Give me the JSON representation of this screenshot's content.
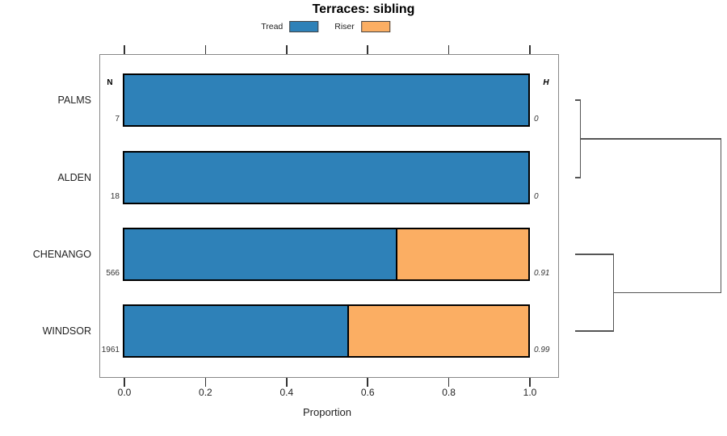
{
  "title": "Terraces: sibling",
  "legend": [
    {
      "label": "Tread",
      "color": "#2E81B8"
    },
    {
      "label": "Riser",
      "color": "#FBAE63"
    }
  ],
  "columns": {
    "n_header": "N",
    "h_header": "H"
  },
  "axis": {
    "label": "Proportion",
    "tick_labels": [
      "0.0",
      "0.2",
      "0.4",
      "0.6",
      "0.8",
      "1.0"
    ]
  },
  "chart_data": {
    "type": "bar",
    "orientation": "horizontal",
    "stacked": true,
    "title": "Terraces: sibling",
    "xlabel": "Proportion",
    "xlim": [
      0,
      1
    ],
    "xticks": [
      0,
      0.2,
      0.4,
      0.6,
      0.8,
      1.0
    ],
    "grid": false,
    "legend_position": "top",
    "categories": [
      "PALMS",
      "ALDEN",
      "CHENANGO",
      "WINDSOR"
    ],
    "series": [
      {
        "name": "Tread",
        "color": "#2E81B8",
        "values": [
          1.0,
          1.0,
          0.675,
          0.555
        ]
      },
      {
        "name": "Riser",
        "color": "#FBAE63",
        "values": [
          0.0,
          0.0,
          0.325,
          0.445
        ]
      }
    ],
    "n_values": [
      "7",
      "18",
      "566",
      "1961"
    ],
    "h_values": [
      "0",
      "0",
      "0.91",
      "0.99"
    ],
    "dendrogram": {
      "side": "right",
      "merges": [
        {
          "members": [
            "PALMS",
            "ALDEN"
          ],
          "relative_height": "low"
        },
        {
          "members": [
            "CHENANGO",
            "WINDSOR"
          ],
          "relative_height": "medium"
        },
        {
          "members": [
            "PALMS+ALDEN",
            "CHENANGO+WINDSOR"
          ],
          "relative_height": "root"
        }
      ]
    }
  }
}
